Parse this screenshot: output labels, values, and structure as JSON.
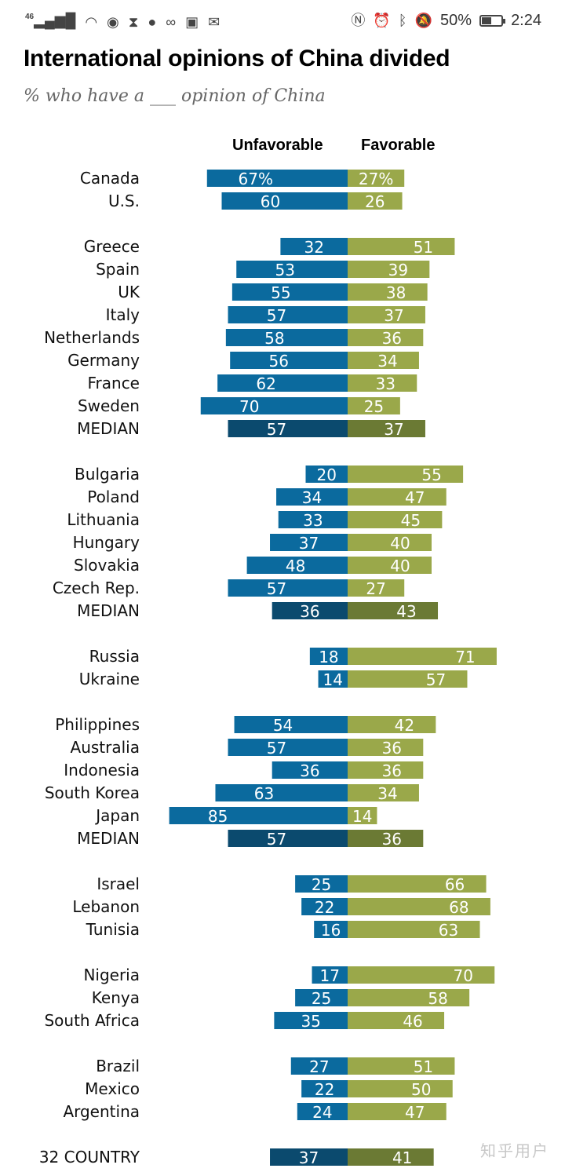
{
  "status_bar": {
    "network": "46",
    "battery_percent": "50%",
    "battery_level": 0.5,
    "time": "2:24"
  },
  "chart_title": "International opinions of China divided",
  "chart_subtitle": "% who have a ___ opinion of China",
  "chart_data": {
    "type": "bar",
    "orientation": "horizontal-diverging",
    "columns": [
      "Unfavorable",
      "Favorable"
    ],
    "colors": {
      "unfavorable": "#0b6a9e",
      "favorable": "#9aa84a",
      "unfavorable_median": "#0b4a6e",
      "favorable_median": "#6b7a34"
    },
    "groups": [
      {
        "rows": [
          {
            "label": "Canada",
            "unfavorable": 67,
            "favorable": 27,
            "unfav_text": "67%",
            "fav_text": "27%"
          },
          {
            "label": "U.S.",
            "unfavorable": 60,
            "favorable": 26
          }
        ]
      },
      {
        "rows": [
          {
            "label": "Greece",
            "unfavorable": 32,
            "favorable": 51
          },
          {
            "label": "Spain",
            "unfavorable": 53,
            "favorable": 39
          },
          {
            "label": "UK",
            "unfavorable": 55,
            "favorable": 38
          },
          {
            "label": "Italy",
            "unfavorable": 57,
            "favorable": 37
          },
          {
            "label": "Netherlands",
            "unfavorable": 58,
            "favorable": 36
          },
          {
            "label": "Germany",
            "unfavorable": 56,
            "favorable": 34
          },
          {
            "label": "France",
            "unfavorable": 62,
            "favorable": 33
          },
          {
            "label": "Sweden",
            "unfavorable": 70,
            "favorable": 25
          },
          {
            "label": "MEDIAN",
            "unfavorable": 57,
            "favorable": 37,
            "median": true
          }
        ]
      },
      {
        "rows": [
          {
            "label": "Bulgaria",
            "unfavorable": 20,
            "favorable": 55
          },
          {
            "label": "Poland",
            "unfavorable": 34,
            "favorable": 47
          },
          {
            "label": "Lithuania",
            "unfavorable": 33,
            "favorable": 45
          },
          {
            "label": "Hungary",
            "unfavorable": 37,
            "favorable": 40
          },
          {
            "label": "Slovakia",
            "unfavorable": 48,
            "favorable": 40
          },
          {
            "label": "Czech Rep.",
            "unfavorable": 57,
            "favorable": 27
          },
          {
            "label": "MEDIAN",
            "unfavorable": 36,
            "favorable": 43,
            "median": true
          }
        ]
      },
      {
        "rows": [
          {
            "label": "Russia",
            "unfavorable": 18,
            "favorable": 71
          },
          {
            "label": "Ukraine",
            "unfavorable": 14,
            "favorable": 57
          }
        ]
      },
      {
        "rows": [
          {
            "label": "Philippines",
            "unfavorable": 54,
            "favorable": 42
          },
          {
            "label": "Australia",
            "unfavorable": 57,
            "favorable": 36
          },
          {
            "label": "Indonesia",
            "unfavorable": 36,
            "favorable": 36
          },
          {
            "label": "South Korea",
            "unfavorable": 63,
            "favorable": 34
          },
          {
            "label": "Japan",
            "unfavorable": 85,
            "favorable": 14
          },
          {
            "label": "MEDIAN",
            "unfavorable": 57,
            "favorable": 36,
            "median": true
          }
        ]
      },
      {
        "rows": [
          {
            "label": "Israel",
            "unfavorable": 25,
            "favorable": 66
          },
          {
            "label": "Lebanon",
            "unfavorable": 22,
            "favorable": 68
          },
          {
            "label": "Tunisia",
            "unfavorable": 16,
            "favorable": 63
          }
        ]
      },
      {
        "rows": [
          {
            "label": "Nigeria",
            "unfavorable": 17,
            "favorable": 70
          },
          {
            "label": "Kenya",
            "unfavorable": 25,
            "favorable": 58
          },
          {
            "label": "South Africa",
            "unfavorable": 35,
            "favorable": 46
          }
        ]
      },
      {
        "rows": [
          {
            "label": "Brazil",
            "unfavorable": 27,
            "favorable": 51
          },
          {
            "label": "Mexico",
            "unfavorable": 22,
            "favorable": 50
          },
          {
            "label": "Argentina",
            "unfavorable": 24,
            "favorable": 47
          }
        ]
      },
      {
        "rows": [
          {
            "label": "32 COUNTRY",
            "unfavorable": 37,
            "favorable": 41,
            "median": true
          }
        ]
      }
    ]
  },
  "watermark": "知乎用户"
}
